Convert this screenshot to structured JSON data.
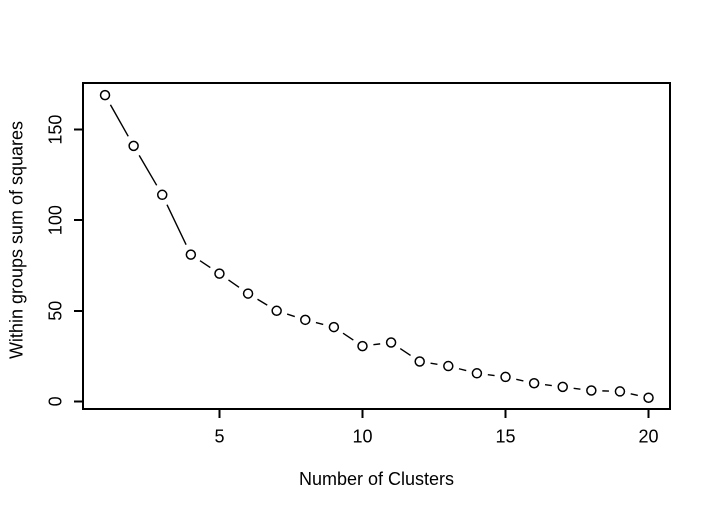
{
  "chart_data": {
    "type": "line",
    "title": "",
    "xlabel": "Number of Clusters",
    "ylabel": "Within groups sum of squares",
    "x": [
      1,
      2,
      3,
      4,
      5,
      6,
      7,
      8,
      9,
      10,
      11,
      12,
      13,
      14,
      15,
      16,
      17,
      18,
      19,
      20
    ],
    "y": [
      169,
      141,
      114,
      81,
      70.5,
      59.5,
      50,
      45,
      41,
      30.5,
      32.5,
      22,
      19.5,
      15.5,
      13.5,
      10,
      8,
      6,
      5.5,
      2
    ],
    "x_ticks": [
      5,
      10,
      15,
      20
    ],
    "y_ticks": [
      0,
      50,
      100,
      150
    ],
    "xlim": [
      0.23,
      20.75
    ],
    "ylim": [
      -4.2,
      175.7
    ],
    "marker": "open-circle",
    "line_type": "both-points-and-lines",
    "grid": false,
    "legend_position": "none",
    "colors": {
      "foreground": "#000000",
      "background": "#ffffff"
    }
  }
}
